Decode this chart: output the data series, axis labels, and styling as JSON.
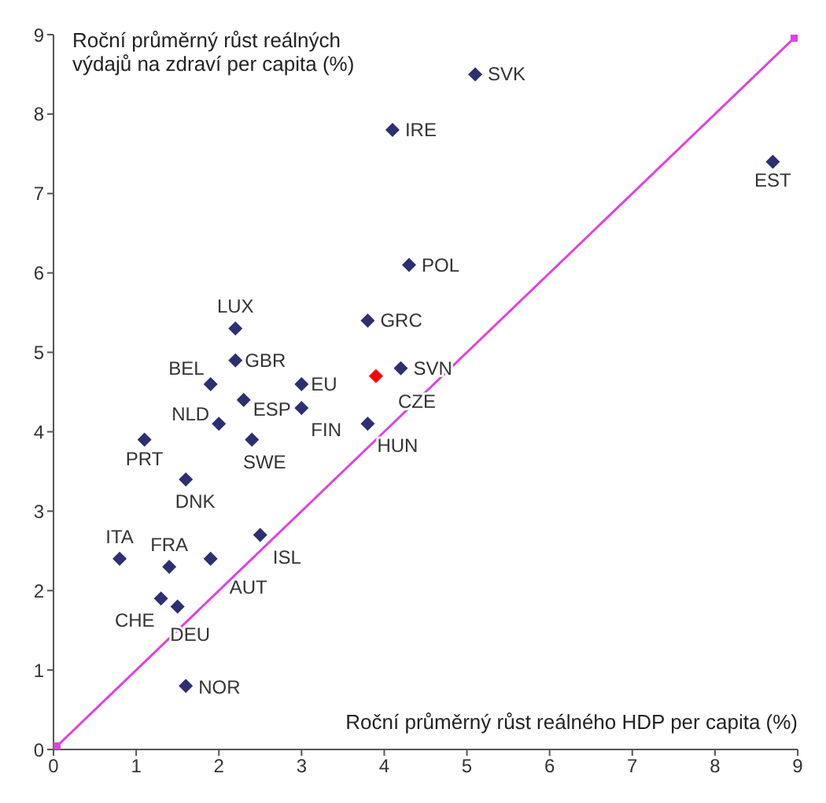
{
  "chart_data": {
    "type": "scatter",
    "xlabel": "Roční průměrný růst reálného HDP per capita (%)",
    "ylabel": "Roční průměrný růst reálných\nvýdajů na zdraví per capita (%)",
    "xlim": [
      0,
      9
    ],
    "ylim": [
      0,
      9
    ],
    "xticks": [
      0,
      1,
      2,
      3,
      4,
      5,
      6,
      7,
      8,
      9
    ],
    "yticks": [
      0,
      1,
      2,
      3,
      4,
      5,
      6,
      7,
      8,
      9
    ],
    "grid": false,
    "legend": false,
    "series": [
      {
        "marker": "diamond",
        "color": "#2e2e72",
        "x": [
          5.1,
          4.1,
          8.7,
          4.3,
          3.8,
          2.2,
          4.2,
          2.2,
          3.0,
          3.9,
          1.9,
          2.0,
          2.3,
          3.0,
          3.8,
          1.1,
          2.4,
          1.6,
          2.5,
          0.8,
          1.4,
          1.9,
          1.3,
          1.5,
          1.6
        ],
        "values": [
          8.5,
          7.8,
          7.4,
          6.1,
          5.4,
          5.3,
          4.8,
          4.9,
          4.6,
          4.7,
          4.6,
          4.1,
          4.4,
          4.3,
          4.1,
          3.9,
          3.9,
          3.4,
          2.7,
          2.4,
          2.3,
          2.4,
          1.9,
          1.8,
          0.8
        ],
        "colors": [
          "#2e2e72",
          "#2e2e72",
          "#2e2e72",
          "#2e2e72",
          "#2e2e72",
          "#2e2e72",
          "#2e2e72",
          "#2e2e72",
          "#2e2e72",
          "#ff0000",
          "#2e2e72",
          "#2e2e72",
          "#2e2e72",
          "#2e2e72",
          "#2e2e72",
          "#2e2e72",
          "#2e2e72",
          "#2e2e72",
          "#2e2e72",
          "#2e2e72",
          "#2e2e72",
          "#2e2e72",
          "#2e2e72",
          "#2e2e72",
          "#2e2e72"
        ]
      },
      {
        "type": "line",
        "marker": "square",
        "color": "#e040e0",
        "x": [
          0,
          9
        ],
        "values": [
          0,
          9
        ]
      }
    ],
    "annotations": [
      {
        "text": "SVK",
        "x": 5.1,
        "y": 8.5
      },
      {
        "text": "IRE",
        "x": 4.1,
        "y": 7.8
      },
      {
        "text": "EST",
        "x": 8.7,
        "y": 7.4
      },
      {
        "text": "POL",
        "x": 4.3,
        "y": 6.1
      },
      {
        "text": "GRC",
        "x": 3.8,
        "y": 5.4
      },
      {
        "text": "LUX",
        "x": 2.2,
        "y": 5.3
      },
      {
        "text": "SVN",
        "x": 4.2,
        "y": 4.8
      },
      {
        "text": "GBR",
        "x": 2.2,
        "y": 4.9
      },
      {
        "text": "EU",
        "x": 3.0,
        "y": 4.6
      },
      {
        "text": "CZE",
        "x": 3.9,
        "y": 4.7
      },
      {
        "text": "BEL",
        "x": 1.9,
        "y": 4.6
      },
      {
        "text": "NLD",
        "x": 2.0,
        "y": 4.1
      },
      {
        "text": "ESP",
        "x": 2.3,
        "y": 4.4
      },
      {
        "text": "FIN",
        "x": 3.0,
        "y": 4.3
      },
      {
        "text": "HUN",
        "x": 3.8,
        "y": 4.1
      },
      {
        "text": "PRT",
        "x": 1.1,
        "y": 3.9
      },
      {
        "text": "SWE",
        "x": 2.4,
        "y": 3.9
      },
      {
        "text": "DNK",
        "x": 1.6,
        "y": 3.4
      },
      {
        "text": "ISL",
        "x": 2.5,
        "y": 2.7
      },
      {
        "text": "ITA",
        "x": 0.8,
        "y": 2.4
      },
      {
        "text": "FRA",
        "x": 1.4,
        "y": 2.3
      },
      {
        "text": "AUT",
        "x": 1.9,
        "y": 2.4
      },
      {
        "text": "CHE",
        "x": 1.3,
        "y": 1.9
      },
      {
        "text": "DEU",
        "x": 1.5,
        "y": 1.8
      },
      {
        "text": "NOR",
        "x": 1.6,
        "y": 0.8
      }
    ]
  }
}
